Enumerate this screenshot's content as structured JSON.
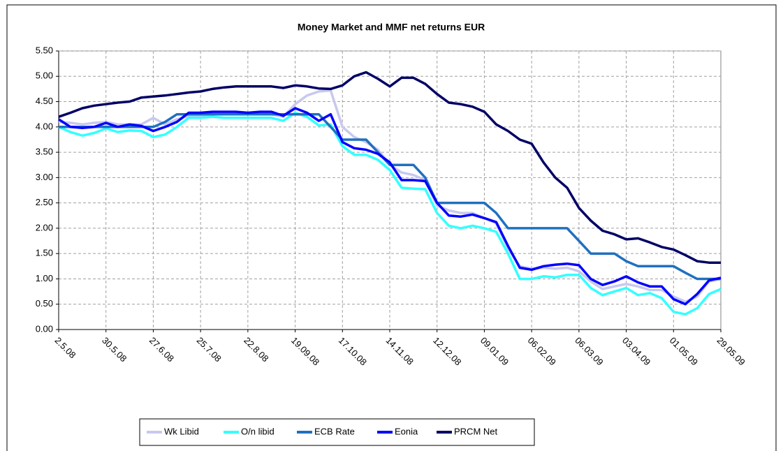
{
  "chart_data": {
    "type": "line",
    "title": "Money Market and MMF net returns EUR",
    "categories": [
      "2.5.08",
      null,
      null,
      null,
      "30.5.08",
      null,
      null,
      null,
      "27.6.08",
      null,
      null,
      null,
      "25.7.08",
      null,
      null,
      null,
      "22.8.08",
      null,
      null,
      null,
      "19.09.08",
      null,
      null,
      null,
      "17.10.08",
      null,
      null,
      null,
      "14.11.08",
      null,
      null,
      null,
      "12.12.08",
      null,
      null,
      null,
      "09.01.09",
      null,
      null,
      null,
      "06.02.09",
      null,
      null,
      null,
      "06.03.09",
      null,
      null,
      null,
      "03.04.09",
      null,
      null,
      null,
      "01.05.09",
      null,
      null,
      null,
      "29.05.09"
    ],
    "series": [
      {
        "name": "Wk Libid",
        "color": "#c8c8f0",
        "values": [
          4.1,
          4.08,
          4.05,
          4.08,
          4.1,
          4.05,
          4.05,
          4.05,
          4.18,
          4.05,
          4.15,
          4.22,
          4.22,
          4.25,
          4.25,
          4.25,
          4.25,
          4.25,
          4.25,
          4.2,
          4.45,
          4.62,
          4.7,
          4.72,
          4.0,
          3.8,
          3.7,
          3.55,
          3.25,
          3.1,
          3.05,
          2.95,
          2.45,
          2.35,
          2.3,
          2.3,
          2.2,
          2.1,
          1.6,
          1.25,
          1.2,
          1.22,
          1.2,
          1.22,
          1.15,
          0.95,
          0.8,
          0.85,
          0.9,
          0.85,
          0.78,
          0.78,
          0.65,
          0.55,
          0.65,
          0.95,
          1.0
        ]
      },
      {
        "name": "O/n libid",
        "color": "#33ffff",
        "values": [
          4.0,
          3.9,
          3.83,
          3.88,
          3.97,
          3.9,
          3.93,
          3.92,
          3.8,
          3.85,
          4.0,
          4.18,
          4.18,
          4.2,
          4.18,
          4.18,
          4.18,
          4.18,
          4.18,
          4.12,
          4.28,
          4.2,
          4.03,
          4.05,
          3.62,
          3.45,
          3.45,
          3.35,
          3.15,
          2.8,
          2.78,
          2.77,
          2.3,
          2.05,
          2.0,
          2.05,
          2.0,
          1.93,
          1.5,
          1.0,
          1.0,
          1.05,
          1.03,
          1.08,
          1.08,
          0.82,
          0.68,
          0.75,
          0.82,
          0.68,
          0.72,
          0.62,
          0.35,
          0.3,
          0.42,
          0.7,
          0.8
        ]
      },
      {
        "name": "ECB Rate",
        "color": "#1f70c0",
        "values": [
          4.0,
          4.0,
          4.0,
          4.0,
          4.0,
          4.0,
          4.0,
          4.0,
          4.0,
          4.1,
          4.25,
          4.25,
          4.25,
          4.25,
          4.25,
          4.25,
          4.25,
          4.25,
          4.25,
          4.25,
          4.25,
          4.25,
          4.25,
          4.0,
          3.75,
          3.75,
          3.75,
          3.5,
          3.25,
          3.25,
          3.25,
          3.0,
          2.5,
          2.5,
          2.5,
          2.5,
          2.5,
          2.3,
          2.0,
          2.0,
          2.0,
          2.0,
          2.0,
          2.0,
          1.75,
          1.5,
          1.5,
          1.5,
          1.35,
          1.25,
          1.25,
          1.25,
          1.25,
          1.12,
          1.0,
          1.0,
          1.0
        ]
      },
      {
        "name": "Eonia",
        "color": "#0000ff",
        "values": [
          4.15,
          4.0,
          3.98,
          4.0,
          4.08,
          4.0,
          4.05,
          4.02,
          3.92,
          4.0,
          4.1,
          4.28,
          4.28,
          4.3,
          4.3,
          4.3,
          4.28,
          4.3,
          4.3,
          4.22,
          4.37,
          4.28,
          4.12,
          4.25,
          3.7,
          3.58,
          3.55,
          3.47,
          3.3,
          2.95,
          2.95,
          2.93,
          2.5,
          2.25,
          2.23,
          2.27,
          2.2,
          2.12,
          1.65,
          1.22,
          1.18,
          1.25,
          1.28,
          1.3,
          1.27,
          1.0,
          0.88,
          0.95,
          1.05,
          0.93,
          0.85,
          0.85,
          0.6,
          0.5,
          0.7,
          0.97,
          1.02
        ]
      },
      {
        "name": "PRCM Net",
        "color": "#000066",
        "values": [
          4.2,
          4.28,
          4.37,
          4.42,
          4.45,
          4.48,
          4.5,
          4.58,
          4.6,
          4.62,
          4.65,
          4.68,
          4.7,
          4.75,
          4.78,
          4.8,
          4.8,
          4.8,
          4.8,
          4.77,
          4.82,
          4.8,
          4.76,
          4.75,
          4.82,
          5.0,
          5.08,
          4.95,
          4.8,
          4.97,
          4.97,
          4.85,
          4.65,
          4.48,
          4.45,
          4.4,
          4.3,
          4.05,
          3.92,
          3.75,
          3.67,
          3.3,
          3.0,
          2.8,
          2.4,
          2.15,
          1.95,
          1.88,
          1.78,
          1.8,
          1.72,
          1.63,
          1.58,
          1.47,
          1.35,
          1.32,
          1.32
        ]
      }
    ],
    "ylim": [
      0,
      5.5
    ],
    "yticks": [
      {
        "value": 0,
        "label": "0.00"
      },
      {
        "value": 0.5,
        "label": "0.50"
      },
      {
        "value": 1,
        "label": "1.00"
      },
      {
        "value": 1.5,
        "label": "1.50"
      },
      {
        "value": 2,
        "label": "2.00"
      },
      {
        "value": 2.5,
        "label": "2.50"
      },
      {
        "value": 3,
        "label": "3.00"
      },
      {
        "value": 3.5,
        "label": "3.50"
      },
      {
        "value": 4,
        "label": "4.00"
      },
      {
        "value": 4.5,
        "label": "4.50"
      },
      {
        "value": 5,
        "label": "5.00"
      },
      {
        "value": 5.5,
        "label": "5.50"
      }
    ],
    "grid": true,
    "legend": "bottom"
  }
}
